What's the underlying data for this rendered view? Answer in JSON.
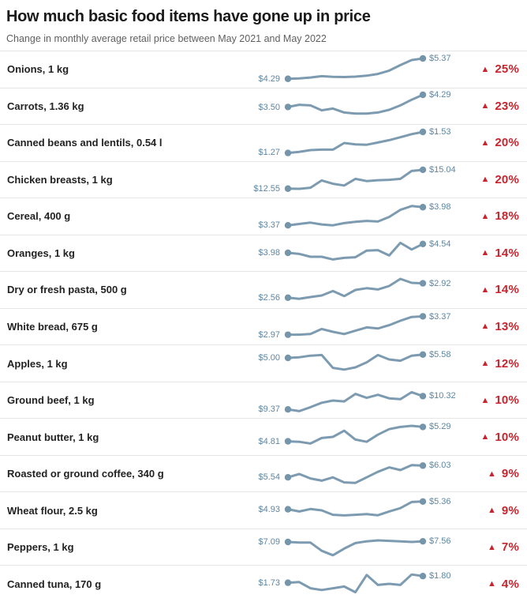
{
  "header": {
    "title": "How much basic food items have gone up in price",
    "subtitle": "Change in monthly average retail price between May 2021 and May 2022"
  },
  "colors": {
    "line": "#7d9bb0",
    "dot": "#7495aa",
    "price_label": "#5e86a1",
    "increase_red": "#c9242d",
    "divider": "#e6e6e6",
    "title_text": "#1a1a1a",
    "subtitle_text": "#5f5f5f",
    "item_text": "#222222"
  },
  "icons": {
    "increase_arrow": "▲"
  },
  "chart_data": {
    "type": "line",
    "subtype": "sparkline-table",
    "title": "How much basic food items have gone up in price",
    "subtitle": "Change in monthly average retail price between May 2021 and May 2022",
    "x_range": [
      "May 2021",
      "May 2022"
    ],
    "x_interval": "monthly",
    "note": "spark values are normalized 0-1 within each row between that row's min and max monthly price",
    "rows": [
      {
        "item": "Onions, 1 kg",
        "start_price": "$4.29",
        "end_price": "$5.37",
        "change_pct": "25%",
        "direction": "up",
        "spark": [
          0.08,
          0.1,
          0.14,
          0.2,
          0.17,
          0.16,
          0.18,
          0.22,
          0.3,
          0.45,
          0.7,
          0.93,
          1.0
        ]
      },
      {
        "item": "Carrots, 1.36 kg",
        "start_price": "$3.50",
        "end_price": "$4.29",
        "change_pct": "23%",
        "direction": "up",
        "spark": [
          0.45,
          0.55,
          0.52,
          0.3,
          0.38,
          0.2,
          0.15,
          0.15,
          0.2,
          0.32,
          0.52,
          0.78,
          1.0
        ]
      },
      {
        "item": "Canned beans and lentils, 0.54 l",
        "start_price": "$1.27",
        "end_price": "$1.53",
        "change_pct": "20%",
        "direction": "up",
        "spark": [
          0.05,
          0.1,
          0.18,
          0.2,
          0.2,
          0.5,
          0.44,
          0.42,
          0.52,
          0.63,
          0.76,
          0.9,
          1.0
        ]
      },
      {
        "item": "Chicken breasts, 1 kg",
        "start_price": "$12.55",
        "end_price": "$15.04",
        "change_pct": "20%",
        "direction": "up",
        "spark": [
          0.08,
          0.07,
          0.12,
          0.45,
          0.3,
          0.22,
          0.52,
          0.42,
          0.46,
          0.48,
          0.52,
          0.88,
          0.93
        ]
      },
      {
        "item": "Cereal, 400 g",
        "start_price": "$3.37",
        "end_price": "$3.98",
        "change_pct": "18%",
        "direction": "up",
        "spark": [
          0.1,
          0.16,
          0.22,
          0.14,
          0.1,
          0.2,
          0.26,
          0.3,
          0.27,
          0.48,
          0.8,
          0.97,
          0.92
        ]
      },
      {
        "item": "Oranges, 1 kg",
        "start_price": "$3.98",
        "end_price": "$4.54",
        "change_pct": "14%",
        "direction": "up",
        "spark": [
          0.5,
          0.45,
          0.32,
          0.32,
          0.2,
          0.27,
          0.3,
          0.6,
          0.62,
          0.38,
          0.95,
          0.65,
          0.9
        ]
      },
      {
        "item": "Dry or fresh pasta, 500 g",
        "start_price": "$2.56",
        "end_price": "$2.92",
        "change_pct": "14%",
        "direction": "up",
        "spark": [
          0.15,
          0.1,
          0.18,
          0.25,
          0.45,
          0.22,
          0.5,
          0.58,
          0.52,
          0.68,
          1.0,
          0.82,
          0.8
        ]
      },
      {
        "item": "White bread, 675 g",
        "start_price": "$2.97",
        "end_price": "$3.37",
        "change_pct": "13%",
        "direction": "up",
        "spark": [
          0.12,
          0.12,
          0.15,
          0.38,
          0.25,
          0.15,
          0.3,
          0.45,
          0.4,
          0.55,
          0.75,
          0.92,
          0.95
        ]
      },
      {
        "item": "Apples, 1 kg",
        "start_price": "$5.00",
        "end_price": "$5.58",
        "change_pct": "12%",
        "direction": "up",
        "spark": [
          0.75,
          0.78,
          0.85,
          0.88,
          0.3,
          0.22,
          0.32,
          0.55,
          0.88,
          0.68,
          0.62,
          0.85,
          0.9
        ]
      },
      {
        "item": "Ground beef, 1 kg",
        "start_price": "$9.37",
        "end_price": "$10.32",
        "change_pct": "10%",
        "direction": "up",
        "spark": [
          0.1,
          0.02,
          0.2,
          0.4,
          0.5,
          0.46,
          0.8,
          0.62,
          0.76,
          0.6,
          0.56,
          0.88,
          0.7
        ]
      },
      {
        "item": "Peanut butter, 1 kg",
        "start_price": "$4.81",
        "end_price": "$5.29",
        "change_pct": "10%",
        "direction": "up",
        "spark": [
          0.3,
          0.28,
          0.2,
          0.45,
          0.5,
          0.78,
          0.38,
          0.28,
          0.6,
          0.85,
          0.95,
          1.0,
          0.95
        ]
      },
      {
        "item": "Roasted or ground coffee, 340 g",
        "start_price": "$5.54",
        "end_price": "$6.03",
        "change_pct": "9%",
        "direction": "up",
        "spark": [
          0.35,
          0.5,
          0.3,
          0.2,
          0.35,
          0.12,
          0.1,
          0.35,
          0.6,
          0.8,
          0.68,
          0.9,
          0.88
        ]
      },
      {
        "item": "Wheat flour, 2.5 kg",
        "start_price": "$4.93",
        "end_price": "$5.36",
        "change_pct": "9%",
        "direction": "up",
        "spark": [
          0.55,
          0.45,
          0.56,
          0.5,
          0.3,
          0.27,
          0.3,
          0.33,
          0.28,
          0.45,
          0.6,
          0.88,
          0.9
        ]
      },
      {
        "item": "Peppers, 1 kg",
        "start_price": "$7.09",
        "end_price": "$7.56",
        "change_pct": "7%",
        "direction": "up",
        "spark": [
          0.75,
          0.72,
          0.72,
          0.35,
          0.15,
          0.45,
          0.7,
          0.78,
          0.82,
          0.8,
          0.78,
          0.75,
          0.78
        ]
      },
      {
        "item": "Canned tuna, 170 g",
        "start_price": "$1.73",
        "end_price": "$1.80",
        "change_pct": "4%",
        "direction": "up",
        "spark": [
          0.55,
          0.58,
          0.3,
          0.22,
          0.3,
          0.38,
          0.12,
          0.9,
          0.45,
          0.5,
          0.45,
          0.92,
          0.85
        ]
      }
    ]
  }
}
